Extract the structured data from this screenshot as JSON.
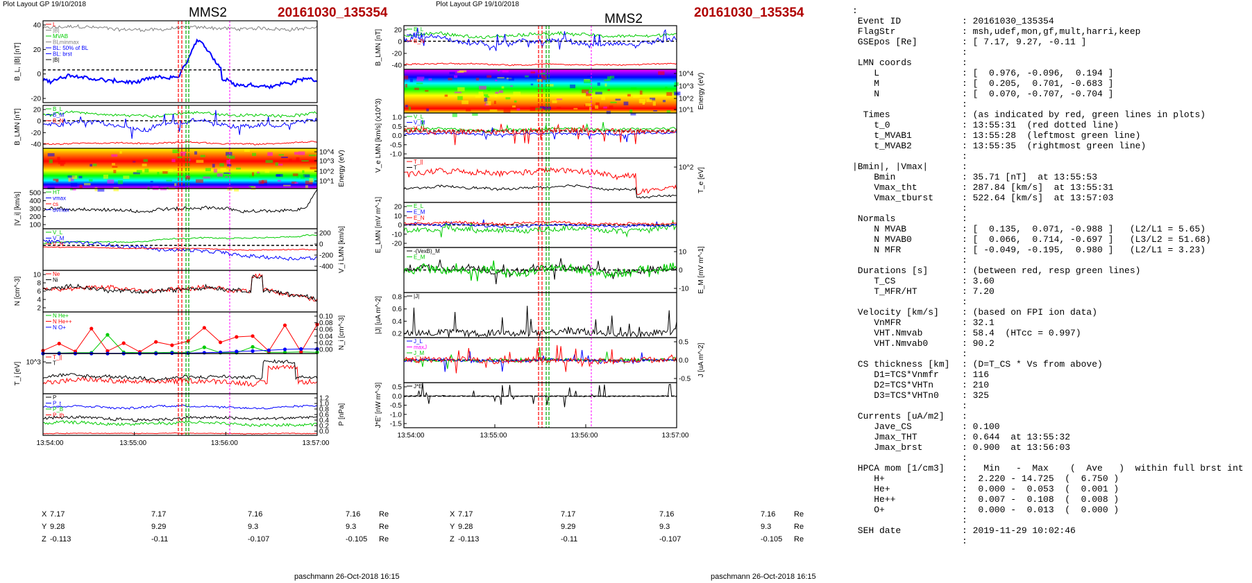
{
  "header": {
    "plot_layout": "Plot Layout GP 19/10/2018",
    "spacecraft": "MMS2",
    "event": "20161030_135354",
    "footer": "paschmann 26-Oct-2018 16:15"
  },
  "colors": {
    "event_red": "#b00000",
    "red": "#ff0000",
    "green": "#00cc00",
    "blue": "#0000ff",
    "magenta": "#ff00ff",
    "gray": "#808080"
  },
  "time_axis": {
    "ticks": [
      "13:54:00",
      "13:55:00",
      "13:56:00",
      "13:57:00"
    ]
  },
  "coords": {
    "labels": [
      "X",
      "Y",
      "Z"
    ],
    "unit": "Re",
    "rows": [
      [
        "7.17",
        "7.17",
        "7.16",
        "7.16"
      ],
      [
        "9.28",
        "9.29",
        "9.3",
        "9.3"
      ],
      [
        "-0.113",
        "-0.11",
        "-0.107",
        "-0.105"
      ]
    ]
  },
  "chart_data": [
    {
      "type": "line",
      "name": "B_L",
      "ylabel": "B_L, |B| [nT]",
      "ylim": [
        -30,
        45
      ],
      "yticks": [
        "40",
        "20",
        "0",
        "-20"
      ],
      "legend": [
        "L",
        "|B|",
        "MVAB",
        "BLminmax",
        "BL: 50% of BL",
        "BL: brst",
        "|B|"
      ],
      "series": [
        {
          "key": "absB",
          "color": "#808080"
        },
        {
          "key": "BL",
          "color": "#0000ff"
        }
      ]
    },
    {
      "type": "line",
      "name": "B_LMN",
      "ylabel": "B_LMN [nT]",
      "ylim": [
        -45,
        25
      ],
      "yticks": [
        "20",
        "0",
        "-20",
        "-40"
      ],
      "legend": [
        "B_L",
        "B_M",
        "B_N"
      ],
      "series": [
        {
          "key": "BM",
          "color": "#00cc00"
        },
        {
          "key": "BL",
          "color": "#0000ff"
        },
        {
          "key": "BN",
          "color": "#ff0000"
        }
      ]
    },
    {
      "type": "heatmap",
      "name": "ion_energy_spectrogram",
      "ylabel": "Energy (eV)",
      "yticks": [
        "10^4",
        "10^3",
        "10^2",
        "10^1"
      ]
    },
    {
      "type": "line",
      "name": "Vi_magnitude",
      "ylabel": "|V_i| [km/s]",
      "ylim": [
        0,
        520
      ],
      "yticks": [
        "500",
        "400",
        "300",
        "200",
        "100"
      ],
      "legend": [
        "HT",
        "vmax",
        "cs",
        "dvmax"
      ],
      "series": [
        {
          "key": "Vi",
          "color": "#000000"
        }
      ]
    },
    {
      "type": "line",
      "name": "Vi_LMN",
      "ylabel": "V_i LMN [km/s]",
      "ylim": [
        -450,
        300
      ],
      "yticks": [
        "200",
        "0",
        "-200",
        "-400"
      ],
      "legend": [
        "V_L",
        "V_M",
        "V_N"
      ],
      "series": [
        {
          "key": "VM",
          "color": "#00cc00"
        },
        {
          "key": "VL",
          "color": "#0000ff"
        },
        {
          "key": "VN",
          "color": "#ff0000"
        }
      ]
    },
    {
      "type": "line",
      "name": "density",
      "ylabel": "N [cm^-3]",
      "ylim": [
        0,
        10
      ],
      "yticks": [
        "10",
        "8",
        "6",
        "4",
        "2"
      ],
      "legend": [
        "Ne",
        "Ni"
      ],
      "series": [
        {
          "key": "Ne",
          "color": "#ff0000"
        },
        {
          "key": "Ni",
          "color": "#000000"
        }
      ]
    },
    {
      "type": "line",
      "name": "hpca_density",
      "ylabel": "N_i [cm^-3]",
      "ylim": [
        0,
        0.1
      ],
      "yticks": [
        "0.10",
        "0.08",
        "0.06",
        "0.04",
        "0.02",
        "0.00"
      ],
      "legend": [
        "N He+",
        "N He++",
        "N O+"
      ],
      "series": [
        {
          "name": "N He+",
          "color": "#00cc00",
          "values": [
            0.0,
            0.001,
            0.002,
            0.002,
            0.045,
            0.003,
            0.002,
            0.002,
            0.003,
            0.002,
            0.015,
            0.002,
            0.002,
            0.016,
            0.003,
            0.003,
            0.004,
            0.003
          ]
        },
        {
          "name": "N He++",
          "color": "#ff0000",
          "values": [
            0.007,
            0.024,
            0.005,
            0.06,
            0.006,
            0.025,
            0.004,
            0.028,
            0.02,
            0.03,
            0.062,
            0.027,
            0.04,
            0.042,
            0.006,
            0.068,
            0.004,
            0.07
          ]
        },
        {
          "name": "N O+",
          "color": "#0000ff",
          "values": [
            0.0,
            0.0,
            0.0,
            0.0,
            0.0,
            0.0,
            0.0,
            0.0,
            0.001,
            0.001,
            0.002,
            0.003,
            0.005,
            0.006,
            0.008,
            0.01,
            0.011,
            0.011
          ]
        }
      ]
    },
    {
      "type": "line",
      "name": "ion_temperature",
      "ylabel": "T_i [eV]",
      "yticks": [
        "10^3"
      ],
      "legend": [
        "T_||",
        "T"
      ],
      "series": [
        {
          "key": "Tpar",
          "color": "#ff0000"
        },
        {
          "key": "T",
          "color": "#000000"
        }
      ]
    },
    {
      "type": "line",
      "name": "pressure",
      "ylabel": "P [nPa]",
      "ylim": [
        0,
        1.2
      ],
      "yticks": [
        "1.2",
        "1.0",
        "0.8",
        "0.6",
        "0.4",
        "0.2",
        "0.0"
      ],
      "legend": [
        "P",
        "P_t",
        "P_B",
        "P_th"
      ],
      "series": [
        {
          "key": "Pt",
          "color": "#0000ff"
        },
        {
          "key": "P",
          "color": "#000000"
        },
        {
          "key": "PB",
          "color": "#00cc00"
        },
        {
          "key": "Pth",
          "color": "#ff0000"
        }
      ]
    },
    {
      "type": "line",
      "name": "B_LMN_right",
      "ylabel": "B_LMN [nT]",
      "ylim": [
        -45,
        25
      ],
      "yticks": [
        "20",
        "0",
        "-20",
        "-40"
      ],
      "legend": [
        "B_L",
        "B_M",
        "B_N"
      ],
      "series": [
        {
          "key": "BM",
          "color": "#00cc00"
        },
        {
          "key": "BL",
          "color": "#0000ff"
        },
        {
          "key": "BN",
          "color": "#ff0000"
        }
      ]
    },
    {
      "type": "heatmap",
      "name": "electron_energy_spectrogram",
      "ylabel": "Energy (eV)",
      "yticks": [
        "10^4",
        "10^3",
        "10^2",
        "10^1"
      ]
    },
    {
      "type": "line",
      "name": "Ve_LMN",
      "ylabel": "V_e LMN [km/s] (x10^3)",
      "ylim": [
        -1.5,
        1.0
      ],
      "yticks": [
        "1.0",
        "0.5",
        "0.0",
        "-0.5",
        "-1.0"
      ],
      "legend": [
        "V_L",
        "V_M",
        "V_N"
      ],
      "series": [
        {
          "key": "VeM",
          "color": "#00cc00"
        },
        {
          "key": "VeL",
          "color": "#0000ff"
        },
        {
          "key": "VeN",
          "color": "#ff0000"
        }
      ]
    },
    {
      "type": "line",
      "name": "electron_temperature",
      "ylabel": "T_e [eV]",
      "yticks": [
        "10^2"
      ],
      "legend": [
        "T_||",
        "T"
      ],
      "series": [
        {
          "key": "Tepar",
          "color": "#ff0000"
        },
        {
          "key": "Te",
          "color": "#000000"
        }
      ]
    },
    {
      "type": "line",
      "name": "E_LMN",
      "ylabel": "E_LMN [mV m^-1]",
      "ylim": [
        -28,
        28
      ],
      "yticks": [
        "20",
        "10",
        "0",
        "-10",
        "-20"
      ],
      "legend": [
        "E_L",
        "E_M",
        "E_N"
      ],
      "series": [
        {
          "key": "EM",
          "color": "#00cc00"
        },
        {
          "key": "EL",
          "color": "#0000ff"
        },
        {
          "key": "EN",
          "color": "#ff0000"
        }
      ]
    },
    {
      "type": "line",
      "name": "E_M",
      "ylabel": "E_M [mV m^-1]",
      "ylim": [
        -14,
        14
      ],
      "yticks": [
        "10",
        "0",
        "-10"
      ],
      "legend": [
        "-(VexB)_M",
        "E_M"
      ],
      "series": [
        {
          "key": "VexB",
          "color": "#000000"
        },
        {
          "key": "EMm",
          "color": "#00cc00"
        }
      ]
    },
    {
      "type": "line",
      "name": "current_magnitude",
      "ylabel": "|J| [uA m^-2]",
      "ylim": [
        0,
        0.85
      ],
      "yticks": [
        "0.8",
        "0.6",
        "0.4",
        "0.2"
      ],
      "legend": [
        "|J|"
      ],
      "series": [
        {
          "key": "J",
          "color": "#000000"
        }
      ]
    },
    {
      "type": "line",
      "name": "J_LMN",
      "ylabel": "J [uA m^-2]",
      "ylim": [
        -0.75,
        0.75
      ],
      "yticks": [
        "0.5",
        "0.0",
        "-0.5"
      ],
      "legend": [
        "J_L",
        "maxJ",
        "J_M",
        "J_N"
      ],
      "series": [
        {
          "key": "JM",
          "color": "#00cc00"
        },
        {
          "key": "JL",
          "color": "#0000ff"
        },
        {
          "key": "JN",
          "color": "#ff0000"
        }
      ]
    },
    {
      "type": "line",
      "name": "J_dot_E",
      "ylabel": "J*E' [nW m^-3]",
      "ylim": [
        -1.75,
        0.75
      ],
      "yticks": [
        "0.5",
        "0.0",
        "-0.5",
        "-1.0",
        "-1.5"
      ],
      "legend": [
        "J*E'"
      ],
      "series": [
        {
          "key": "JE",
          "color": "#000000"
        }
      ]
    }
  ],
  "info_panel": {
    "lines": [
      [
        ":",
        ""
      ],
      [
        " Event ID",
        ": 20161030_135354"
      ],
      [
        " FlagStr",
        ": msh,udef,mon,gf,mult,harri,keep"
      ],
      [
        " GSEpos [Re]",
        ": [ 7.17, 9.27, -0.11 ]"
      ],
      [
        "",
        ":"
      ],
      [
        " LMN coords",
        ":"
      ],
      [
        "    L",
        ": [  0.976, -0.096,  0.194 ]"
      ],
      [
        "    M",
        ": [  0.205,  0.701, -0.683 ]"
      ],
      [
        "    N",
        ": [  0.070, -0.707, -0.704 ]"
      ],
      [
        "",
        ":"
      ],
      [
        "  Times",
        ": (as indicated by red, green lines in plots)"
      ],
      [
        "    t_0",
        ": 13:55:31  (red dotted line)"
      ],
      [
        "    t_MVAB1",
        ": 13:55:28  (leftmost green line)"
      ],
      [
        "    t_MVAB2",
        ": 13:55:35  (rightmost green line)"
      ],
      [
        "",
        ":"
      ],
      [
        "|Bmin|, |Vmax|",
        ":"
      ],
      [
        "    Bmin",
        ": 35.71 [nT]  at 13:55:53"
      ],
      [
        "    Vmax_tht",
        ": 287.84 [km/s]  at 13:55:31"
      ],
      [
        "    Vmax_tburst",
        ": 522.64 [km/s]  at 13:57:03"
      ],
      [
        "",
        ":"
      ],
      [
        " Normals",
        ":"
      ],
      [
        "    N MVAB",
        ": [  0.135,  0.071, -0.988 ]   (L2/L1 = 5.65)"
      ],
      [
        "    N MVAB0",
        ": [  0.066,  0.714, -0.697 ]   (L3/L2 = 51.68)"
      ],
      [
        "    N MFR",
        ": [ -0.049, -0.195,  0.980 ]   (L2/L1 = 3.23)"
      ],
      [
        "",
        ":"
      ],
      [
        " Durations [s]",
        ": (between red, resp green lines)"
      ],
      [
        "    T_CS",
        ": 3.60"
      ],
      [
        "    T_MFR/HT",
        ": 7.20"
      ],
      [
        "",
        ":"
      ],
      [
        " Velocity [km/s]",
        ": (based on FPI ion data)"
      ],
      [
        "    VnMFR",
        ": 32.1"
      ],
      [
        "    VHT.Nmvab",
        ": 58.4  (HTcc = 0.997)"
      ],
      [
        "    VHT.Nmvab0",
        ": 90.2"
      ],
      [
        "",
        ":"
      ],
      [
        " CS thickness [km]",
        ": (D=T_CS * Vs from above)"
      ],
      [
        "    D1=TCS*Vnmfr",
        ": 116"
      ],
      [
        "    D2=TCS*VHTn",
        ": 210"
      ],
      [
        "    D3=TCS*VHTn0",
        ": 325"
      ],
      [
        "",
        ":"
      ],
      [
        " Currents [uA/m2]",
        ":"
      ],
      [
        "    Jave_CS",
        ": 0.100"
      ],
      [
        "    Jmax_THT",
        ": 0.644  at 13:55:32"
      ],
      [
        "    Jmax_brst",
        ": 0.900  at 13:56:03"
      ],
      [
        "",
        ":"
      ],
      [
        " HPCA mom [1/cm3]",
        ":   Min   -  Max    (  Ave   )  within full brst int"
      ],
      [
        "    H+",
        ":  2.220 - 14.725  (  6.750 )"
      ],
      [
        "    He+",
        ":  0.000 -  0.053  (  0.001 )"
      ],
      [
        "    He++",
        ":  0.007 -  0.108  (  0.008 )"
      ],
      [
        "    O+",
        ":  0.000 -  0.013  (  0.000 )"
      ],
      [
        "",
        ":"
      ],
      [
        " SEH date",
        ": 2019-11-29 10:02:46"
      ],
      [
        "",
        ":"
      ]
    ]
  }
}
